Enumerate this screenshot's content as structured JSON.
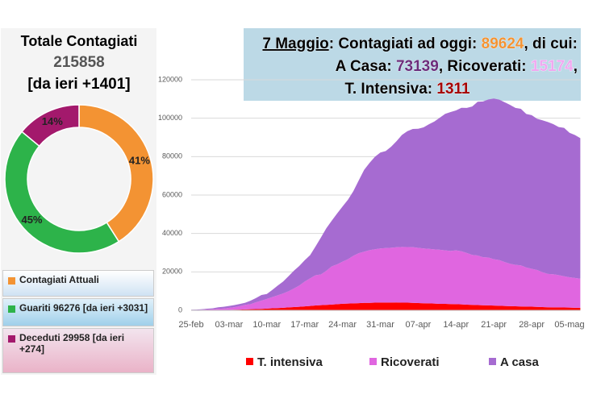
{
  "chart_data": [
    {
      "type": "pie",
      "donut": true,
      "title": "Totale Contagiati",
      "subtitles": [
        "215858",
        "[da ieri +1401]"
      ],
      "categories": [
        "Contagiati Attuali",
        "Guariti 96276 [da ieri +3031]",
        "Deceduti 29958 [da ieri +274]"
      ],
      "values": [
        41,
        45,
        14
      ],
      "value_labels": [
        "41%",
        "45%",
        "14%"
      ],
      "colors": [
        "#f39333",
        "#2db34a",
        "#a3196c"
      ],
      "legend": "bottom"
    },
    {
      "type": "area",
      "stacked": true,
      "banner": [
        [
          {
            "text": "7 Maggio",
            "color": "#000000",
            "underline": true
          },
          {
            "text": ": Contagiati ad oggi: ",
            "color": "#000000"
          },
          {
            "text": "89624",
            "color": "#f39333"
          },
          {
            "text": ", di cui:",
            "color": "#000000"
          }
        ],
        [
          {
            "text": "A Casa: ",
            "color": "#000000"
          },
          {
            "text": "73139",
            "color": "#6b2c7a"
          },
          {
            "text": ", Ricoverati: ",
            "color": "#000000"
          },
          {
            "text": "15174",
            "color": "#f0a8f0"
          },
          {
            "text": ",",
            "color": "#000000"
          }
        ],
        [
          {
            "text": "T. Intensiva: ",
            "color": "#000000"
          },
          {
            "text": "1311",
            "color": "#a50000"
          }
        ]
      ],
      "categories": [
        "25-feb",
        null,
        null,
        null,
        null,
        null,
        null,
        "03-mar",
        null,
        null,
        null,
        null,
        null,
        null,
        "10-mar",
        null,
        null,
        null,
        null,
        null,
        null,
        "17-mar",
        null,
        null,
        null,
        null,
        null,
        null,
        "24-mar",
        null,
        null,
        null,
        null,
        null,
        null,
        "31-mar",
        null,
        null,
        null,
        null,
        null,
        null,
        "07-apr",
        null,
        null,
        null,
        null,
        null,
        null,
        "14-apr",
        null,
        null,
        null,
        null,
        null,
        null,
        "21-apr",
        null,
        null,
        null,
        null,
        null,
        null,
        "28-apr",
        null,
        null,
        null,
        null,
        null,
        null,
        "05-mag",
        null,
        null
      ],
      "series": [
        {
          "name": "T. intensiva",
          "color": "#ff0000",
          "values": [
            35,
            36,
            56,
            64,
            105,
            140,
            166,
            229,
            295,
            351,
            462,
            567,
            650,
            733,
            877,
            1028,
            1153,
            1328,
            1518,
            1672,
            1851,
            2060,
            2257,
            2498,
            2655,
            2857,
            3009,
            3204,
            3396,
            3489,
            3612,
            3732,
            3856,
            3906,
            3981,
            4023,
            4035,
            4053,
            4068,
            3994,
            3977,
            3898,
            3792,
            3693,
            3605,
            3497,
            3381,
            3343,
            3260,
            3186,
            3079,
            2936,
            2812,
            2733,
            2635,
            2573,
            2471,
            2384,
            2267,
            2173,
            2102,
            2009,
            1956,
            1863,
            1795,
            1694,
            1578,
            1539,
            1501,
            1479,
            1427,
            1333,
            1311
          ]
        },
        {
          "name": "Ricoverati",
          "color": "#e066e0",
          "values": [
            114,
            128,
            248,
            345,
            401,
            639,
            742,
            1034,
            1346,
            1790,
            2394,
            2651,
            3557,
            4316,
            5038,
            5838,
            6650,
            7426,
            8372,
            9663,
            11025,
            12894,
            14363,
            15757,
            16020,
            17708,
            19846,
            20692,
            21937,
            23112,
            24753,
            26029,
            26676,
            27386,
            27795,
            28192,
            28403,
            28540,
            28741,
            29010,
            28949,
            28976,
            28718,
            28485,
            28399,
            28242,
            28144,
            27847,
            27643,
            28011,
            27643,
            26893,
            26033,
            25786,
            25007,
            24906,
            24134,
            23805,
            22871,
            22068,
            21533,
            21372,
            20353,
            19723,
            19210,
            18149,
            17357,
            17242,
            16823,
            16270,
            15769,
            15500,
            15174
          ]
        },
        {
          "name": "A casa",
          "color": "#a66bd1",
          "values": [
            162,
            221,
            284,
            412,
            543,
            798,
            927,
            1000,
            1065,
            1155,
            1060,
            1843,
            2180,
            2936,
            2599,
            3724,
            5036,
            6201,
            7860,
            9268,
            10197,
            11108,
            12090,
            14935,
            19185,
            22116,
            23783,
            26522,
            28697,
            30920,
            33648,
            37860,
            42588,
            45420,
            48134,
            49937,
            50456,
            52579,
            55270,
            58320,
            60313,
            61557,
            62013,
            63084,
            64873,
            66534,
            68744,
            71063,
            72333,
            72875,
            74696,
            75528,
            77257,
            80031,
            81104,
            82308,
            83652,
            83504,
            83191,
            82722,
            81710,
            81511,
            79914,
            79981,
            78704,
            79092,
            79102,
            78144,
            77084,
            77246,
            75204,
            74426,
            73139
          ]
        }
      ],
      "ylim": [
        0,
        120000
      ],
      "yticks": [
        0,
        20000,
        40000,
        60000,
        80000,
        100000,
        120000
      ],
      "grid": true,
      "legend": "bottom"
    }
  ]
}
